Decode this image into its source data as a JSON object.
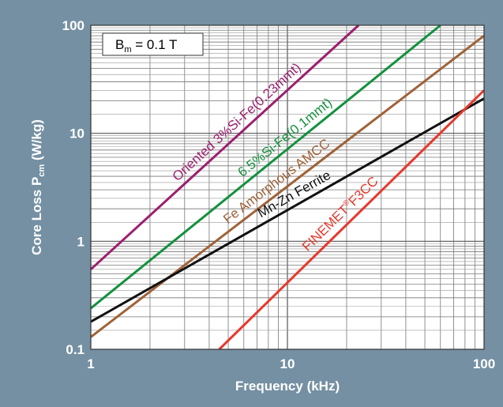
{
  "chart_data": {
    "type": "line",
    "xlabel": "Frequency (kHz)",
    "ylabel_main": "Core Loss P",
    "ylabel_sub": "cm",
    "ylabel_unit": " (W/kg)",
    "xscale": "log",
    "yscale": "log",
    "xlim": [
      1,
      100
    ],
    "ylim": [
      0.1,
      100
    ],
    "x_ticks": [
      1,
      10,
      100
    ],
    "x_tick_labels": [
      "1",
      "10",
      "100"
    ],
    "y_ticks": [
      0.1,
      1,
      10,
      100
    ],
    "y_tick_labels": [
      "0.1",
      "1",
      "10",
      "100"
    ],
    "grid": true,
    "annotation": {
      "main": "B",
      "sub": "m",
      "rest": " = 0.1 T"
    },
    "series": [
      {
        "name": "Oriented 3%Si-Fe(0.23mmt)",
        "label_parts": [
          "Oriented 3%Si-Fe(0.23mmt)"
        ],
        "color": "#9c1f6e",
        "x": [
          1,
          23
        ],
        "y": [
          0.55,
          100
        ]
      },
      {
        "name": "6.5%Si-Fe(0.1mmt)",
        "label_parts": [
          "6.5%Si-Fe(0.1mmt)"
        ],
        "color": "#13913e",
        "x": [
          1,
          60
        ],
        "y": [
          0.24,
          100
        ]
      },
      {
        "name": "Fe Amorphous AMCC",
        "label_parts": [
          "Fe Amorphous AMCC"
        ],
        "color": "#a06238",
        "x": [
          1,
          100
        ],
        "y": [
          0.13,
          80
        ]
      },
      {
        "name": "Mn-Zn Ferrite",
        "label_parts": [
          "Mn-Zn Ferrite"
        ],
        "color": "#111111",
        "x": [
          1,
          100
        ],
        "y": [
          0.18,
          21
        ]
      },
      {
        "name": "FINEMET®F3CC",
        "label_parts": [
          "FINEMET",
          "®",
          "F3CC"
        ],
        "color": "#e8382c",
        "x": [
          4.5,
          100
        ],
        "y": [
          0.1,
          25
        ]
      }
    ]
  }
}
